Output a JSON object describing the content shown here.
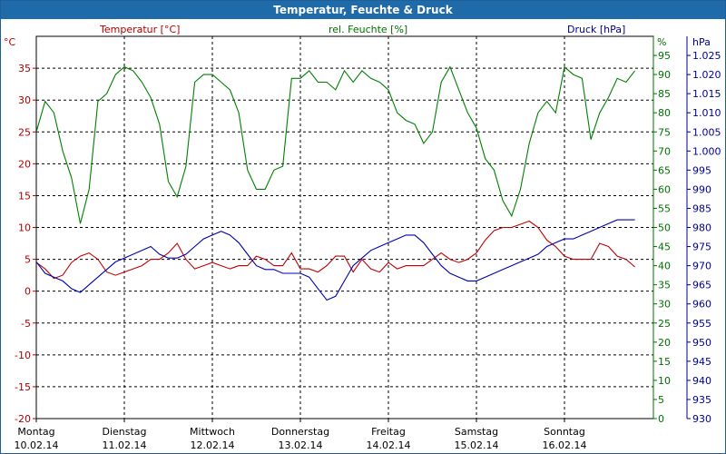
{
  "chart_data": {
    "type": "line",
    "title": "Temperatur, Feuchte & Druck",
    "grid": true,
    "x_days": [
      {
        "day": "Montag",
        "date": "10.02.14"
      },
      {
        "day": "Dienstag",
        "date": "11.02.14"
      },
      {
        "day": "Mittwoch",
        "date": "12.02.14"
      },
      {
        "day": "Donnerstag",
        "date": "13.02.14"
      },
      {
        "day": "Freitag",
        "date": "14.02.14"
      },
      {
        "day": "Samstag",
        "date": "15.02.14"
      },
      {
        "day": "Sonntag",
        "date": "16.02.14"
      }
    ],
    "axes": {
      "temperature": {
        "unit": "°C",
        "ylim": [
          -20,
          40
        ],
        "ticks": [
          "-20",
          "-15",
          "-10",
          "-5",
          "0",
          "5",
          "10",
          "15",
          "20",
          "25",
          "30",
          "35"
        ],
        "color": "#b00000"
      },
      "humidity": {
        "unit": "%",
        "ylim": [
          0,
          100
        ],
        "ticks": [
          "0",
          "5",
          "10",
          "15",
          "20",
          "25",
          "30",
          "35",
          "40",
          "45",
          "50",
          "55",
          "60",
          "65",
          "70",
          "75",
          "80",
          "85",
          "90",
          "95"
        ],
        "color": "#007000"
      },
      "pressure": {
        "unit": "hPa",
        "ylim": [
          930,
          1030
        ],
        "ticks": [
          "930",
          "935",
          "940",
          "945",
          "950",
          "955",
          "960",
          "965",
          "970",
          "975",
          "980",
          "985",
          "990",
          "995",
          "1.000",
          "1.005",
          "1.010",
          "1.015",
          "1.020",
          "1.025"
        ],
        "color": "#000090"
      }
    },
    "series": [
      {
        "name": "Temperatur [°C]",
        "axis": "temperature",
        "color": "#c00000",
        "x": [
          0,
          0.1,
          0.2,
          0.3,
          0.4,
          0.5,
          0.6,
          0.7,
          0.8,
          0.9,
          1,
          1.1,
          1.2,
          1.3,
          1.4,
          1.5,
          1.6,
          1.7,
          1.8,
          1.9,
          2,
          2.1,
          2.2,
          2.3,
          2.4,
          2.5,
          2.6,
          2.7,
          2.8,
          2.9,
          3,
          3.1,
          3.2,
          3.3,
          3.4,
          3.5,
          3.6,
          3.7,
          3.8,
          3.9,
          4,
          4.1,
          4.2,
          4.3,
          4.4,
          4.5,
          4.6,
          4.7,
          4.8,
          4.9,
          5,
          5.1,
          5.2,
          5.3,
          5.4,
          5.5,
          5.6,
          5.7,
          5.8,
          5.9,
          6,
          6.1,
          6.2,
          6.3,
          6.4,
          6.5,
          6.6,
          6.7,
          6.8
        ],
        "values": [
          4.5,
          3.5,
          2,
          2.5,
          4.5,
          5.5,
          6,
          5,
          3,
          2.5,
          3,
          3.5,
          4,
          5,
          5,
          6,
          7.5,
          5,
          3.5,
          4,
          4.5,
          4,
          3.5,
          4,
          4,
          5.5,
          5,
          4,
          4,
          6,
          3.5,
          3.5,
          3,
          4,
          5.5,
          5.5,
          3,
          5,
          3.5,
          3,
          4.5,
          3.5,
          4,
          4,
          4,
          5,
          6,
          5,
          4.5,
          5,
          6,
          8,
          9.5,
          10,
          10,
          10.5,
          11,
          10,
          8,
          7,
          5.5,
          5,
          5,
          5,
          7.5,
          7,
          5.5,
          5,
          3.8
        ]
      },
      {
        "name": "rel. Feuchte [%]",
        "axis": "humidity",
        "color": "#008000",
        "x": [
          0,
          0.1,
          0.2,
          0.3,
          0.4,
          0.5,
          0.6,
          0.7,
          0.8,
          0.9,
          1,
          1.1,
          1.2,
          1.3,
          1.4,
          1.5,
          1.6,
          1.7,
          1.8,
          1.9,
          2,
          2.1,
          2.2,
          2.3,
          2.4,
          2.5,
          2.6,
          2.7,
          2.8,
          2.9,
          3,
          3.1,
          3.2,
          3.3,
          3.4,
          3.5,
          3.6,
          3.7,
          3.8,
          3.9,
          4,
          4.1,
          4.2,
          4.3,
          4.4,
          4.5,
          4.6,
          4.7,
          4.8,
          4.9,
          5,
          5.1,
          5.2,
          5.3,
          5.4,
          5.5,
          5.6,
          5.7,
          5.8,
          5.9,
          6,
          6.1,
          6.2,
          6.3,
          6.4,
          6.5,
          6.6,
          6.7,
          6.8
        ],
        "values": [
          75,
          83,
          80,
          70,
          63,
          51,
          60,
          83,
          85,
          90,
          92,
          91,
          88,
          84,
          77,
          62,
          58,
          66,
          88,
          90,
          90,
          88,
          86,
          80,
          65,
          60,
          60,
          65,
          66,
          89,
          89,
          91,
          88,
          88,
          86,
          91,
          88,
          91,
          89,
          88,
          86,
          80,
          78,
          77,
          72,
          75,
          88,
          92,
          86,
          80,
          76,
          68,
          65,
          57,
          53,
          60,
          72,
          80,
          83,
          80,
          92,
          90,
          89,
          73,
          80,
          84,
          89,
          88,
          91
        ]
      },
      {
        "name": "Druck [hPa]",
        "axis": "pressure",
        "color": "#0000b0",
        "x": [
          0,
          0.1,
          0.2,
          0.3,
          0.4,
          0.5,
          0.6,
          0.7,
          0.8,
          0.9,
          1,
          1.1,
          1.2,
          1.3,
          1.4,
          1.5,
          1.6,
          1.7,
          1.8,
          1.9,
          2,
          2.1,
          2.2,
          2.3,
          2.4,
          2.5,
          2.6,
          2.7,
          2.8,
          2.9,
          3,
          3.1,
          3.2,
          3.3,
          3.4,
          3.5,
          3.6,
          3.7,
          3.8,
          3.9,
          4,
          4.1,
          4.2,
          4.3,
          4.4,
          4.5,
          4.6,
          4.7,
          4.8,
          4.9,
          5,
          5.1,
          5.2,
          5.3,
          5.4,
          5.5,
          5.6,
          5.7,
          5.8,
          5.9,
          6,
          6.1,
          6.2,
          6.3,
          6.4,
          6.5,
          6.6,
          6.7,
          6.8
        ],
        "values": [
          971,
          968,
          967,
          966,
          964,
          963,
          965,
          967,
          969,
          971,
          972,
          973,
          974,
          975,
          973,
          972,
          972,
          973,
          975,
          977,
          978,
          979,
          978,
          976,
          973,
          970,
          969,
          969,
          968,
          968,
          968,
          967,
          964,
          961,
          962,
          966,
          970,
          972,
          974,
          975,
          976,
          977,
          978,
          978,
          976,
          973,
          970,
          968,
          967,
          966,
          966,
          967,
          968,
          969,
          970,
          971,
          972,
          973,
          975,
          976,
          977,
          977,
          978,
          979,
          980,
          981,
          982,
          982,
          982
        ]
      }
    ]
  },
  "legend_labels": {
    "temperature": "Temperatur [°C]",
    "humidity": "rel. Feuchte [%]",
    "pressure": "Druck [hPa]"
  }
}
